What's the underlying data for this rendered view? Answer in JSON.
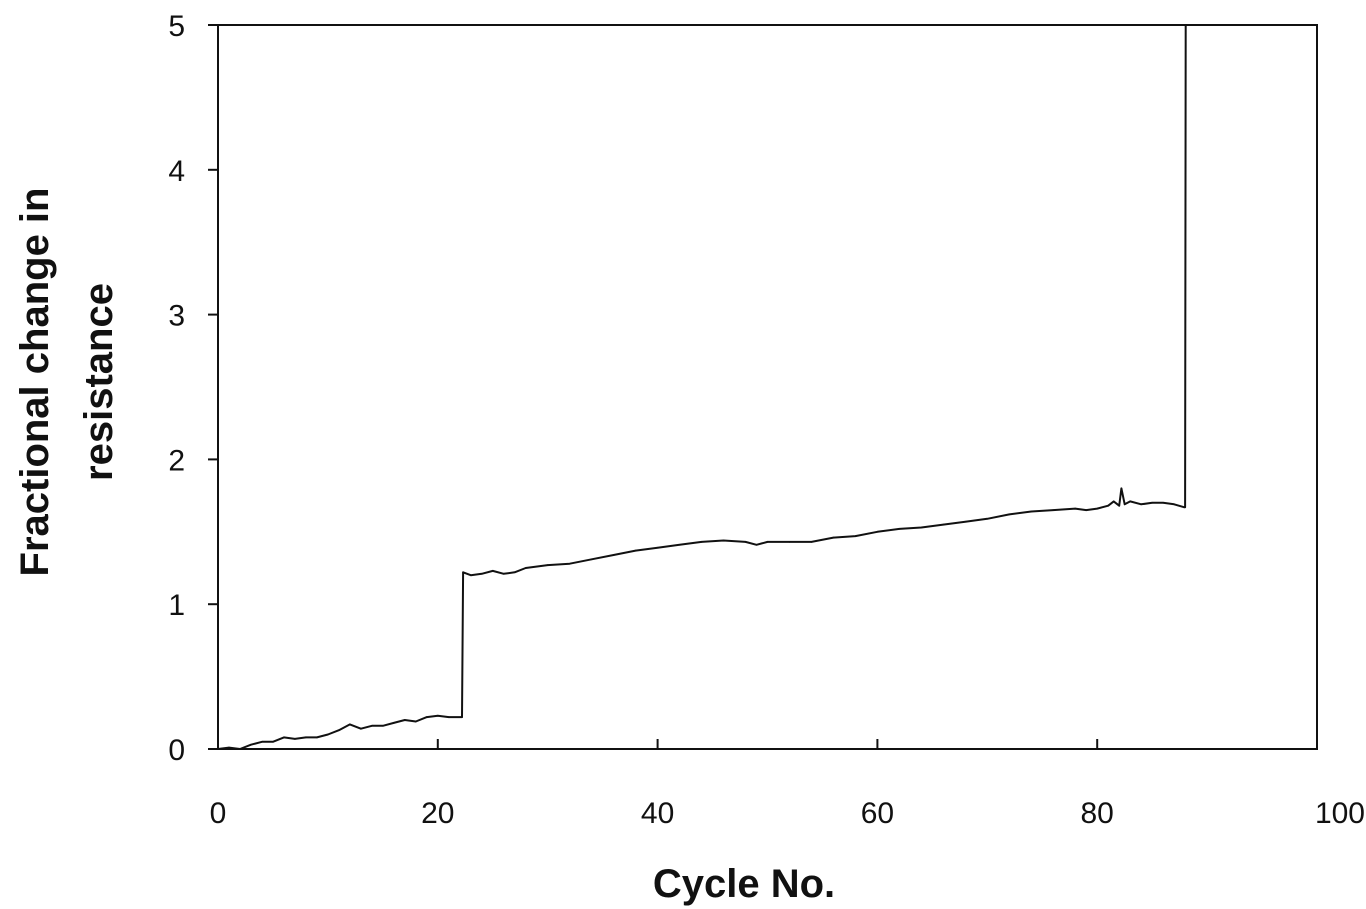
{
  "chart_data": {
    "type": "line",
    "xlabel": "Cycle No.",
    "ylabel": [
      "Fractional change in",
      "resistance"
    ],
    "xlim": [
      0,
      100
    ],
    "ylim": [
      0,
      5
    ],
    "x_ticks": [
      0,
      20,
      40,
      60,
      80,
      100
    ],
    "y_ticks": [
      0,
      1,
      2,
      3,
      4,
      5
    ],
    "x_tick_labels": [
      "0",
      "20",
      "40",
      "60",
      "80",
      100
    ],
    "y_tick_labels": [
      "0",
      "1",
      "2",
      "3",
      "4",
      "5"
    ],
    "grid": false,
    "legend": "none",
    "colors": {
      "line": "#111111",
      "axis": "#111111"
    },
    "series": [
      {
        "x": [
          0,
          1,
          2,
          3,
          4,
          5,
          6,
          7,
          8,
          9,
          10,
          11,
          12,
          13,
          14,
          15,
          16,
          17,
          18,
          19,
          20,
          21,
          22.2,
          22.3,
          23,
          24,
          25,
          26,
          27,
          28,
          30,
          32,
          34,
          36,
          38,
          40,
          42,
          44,
          46,
          48,
          49,
          50,
          52,
          54,
          56,
          58,
          60,
          62,
          64,
          66,
          68,
          70,
          72,
          74,
          76,
          78,
          79,
          80,
          81,
          81.5,
          82,
          82.2,
          82.5,
          83,
          84,
          85,
          86,
          87,
          87.9,
          88,
          88.05
        ],
        "y": [
          0.0,
          0.01,
          0.0,
          0.03,
          0.05,
          0.05,
          0.08,
          0.07,
          0.08,
          0.08,
          0.1,
          0.13,
          0.17,
          0.14,
          0.16,
          0.16,
          0.18,
          0.2,
          0.19,
          0.22,
          0.23,
          0.22,
          0.22,
          1.22,
          1.2,
          1.21,
          1.23,
          1.21,
          1.22,
          1.25,
          1.27,
          1.28,
          1.31,
          1.34,
          1.37,
          1.39,
          1.41,
          1.43,
          1.44,
          1.43,
          1.41,
          1.43,
          1.43,
          1.43,
          1.46,
          1.47,
          1.5,
          1.52,
          1.53,
          1.55,
          1.57,
          1.59,
          1.62,
          1.64,
          1.65,
          1.66,
          1.65,
          1.66,
          1.68,
          1.71,
          1.68,
          1.8,
          1.69,
          1.71,
          1.69,
          1.7,
          1.7,
          1.69,
          1.67,
          1.67,
          5.0
        ]
      }
    ]
  }
}
